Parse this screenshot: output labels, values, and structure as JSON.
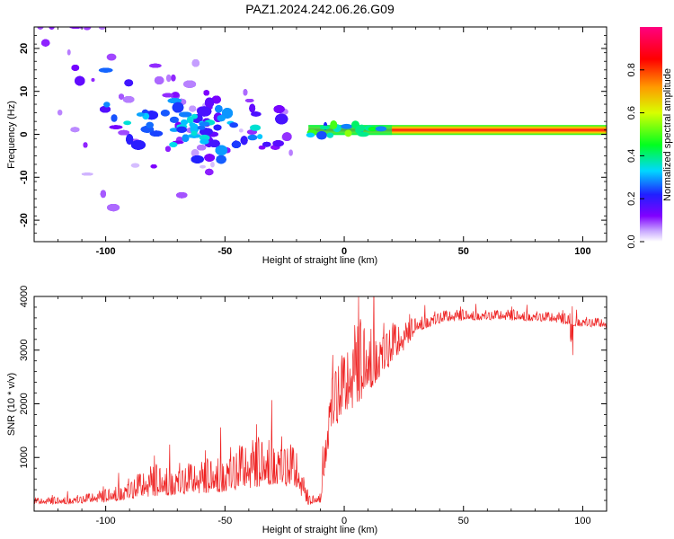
{
  "figure": {
    "title": "PAZ1.2024.242.06.26.G09"
  },
  "chart_data": [
    {
      "type": "heatmap",
      "xlabel": "Height of straight line (km)",
      "ylabel": "Frequency (Hz)",
      "xlim": [
        -130,
        110
      ],
      "ylim": [
        -25,
        25
      ],
      "xticks": [
        -100,
        -50,
        0,
        50,
        100
      ],
      "yticks": [
        -20,
        -10,
        0,
        10,
        20
      ],
      "colorbar": {
        "label": "Normalized spectral amplitude",
        "range": [
          0,
          1
        ],
        "ticks": [
          0,
          0.2,
          0.4,
          0.6,
          0.8
        ],
        "colormap": "rainbow (white-purple-blue-cyan-green-yellow-red-magenta)"
      },
      "features": {
        "ridge_x": [
          -110,
          -100,
          -90,
          -80,
          -70,
          -60,
          -50,
          -40,
          -30,
          -20,
          -15,
          -10,
          -5,
          0,
          10,
          20,
          40,
          60,
          80,
          100,
          110
        ],
        "ridge_frequency_hz": [
          9,
          8,
          5,
          3,
          2,
          1,
          0,
          0,
          -1,
          0,
          0.5,
          1,
          1,
          1,
          1,
          1,
          1,
          1,
          1,
          1,
          1
        ],
        "ridge_amplitude": [
          0.15,
          0.25,
          0.25,
          0.3,
          0.3,
          0.25,
          0.25,
          0.2,
          0.15,
          0.15,
          0.45,
          0.6,
          0.7,
          0.75,
          0.85,
          0.95,
          0.95,
          0.95,
          0.95,
          0.95,
          0.95
        ],
        "description": "Scattered weak energy spread over -25..25 Hz for heights below -20 km; a single narrow tone near 1 Hz with high normalized amplitude above about -15 km."
      }
    },
    {
      "type": "line",
      "xlabel": "Height of straight line (km)",
      "ylabel": "SNR (10 * v/v)",
      "xlim": [
        -130,
        110
      ],
      "ylim": [
        0,
        4000
      ],
      "xticks": [
        -100,
        -50,
        0,
        50,
        100
      ],
      "yticks": [
        1000,
        2000,
        3000,
        4000
      ],
      "color": "#ee2222",
      "series": [
        {
          "x": [
            -130,
            -120,
            -110,
            -100,
            -90,
            -80,
            -70,
            -60,
            -50,
            -40,
            -30,
            -25,
            -20,
            -15,
            -10,
            -7,
            -5,
            0,
            5,
            10,
            15,
            20,
            25,
            30,
            40,
            50,
            60,
            70,
            80,
            90,
            95,
            100,
            110
          ],
          "y": [
            150,
            160,
            180,
            220,
            300,
            400,
            420,
            450,
            520,
            600,
            700,
            650,
            550,
            150,
            200,
            1300,
            1800,
            2000,
            2300,
            2500,
            2700,
            2900,
            3100,
            3400,
            3550,
            3600,
            3600,
            3600,
            3580,
            3550,
            3500,
            3480,
            3450
          ],
          "spread": [
            60,
            70,
            80,
            120,
            200,
            300,
            300,
            300,
            400,
            450,
            500,
            450,
            400,
            80,
            100,
            500,
            700,
            600,
            800,
            700,
            500,
            400,
            250,
            150,
            120,
            100,
            90,
            100,
            90,
            100,
            100,
            90,
            90
          ]
        }
      ]
    }
  ]
}
